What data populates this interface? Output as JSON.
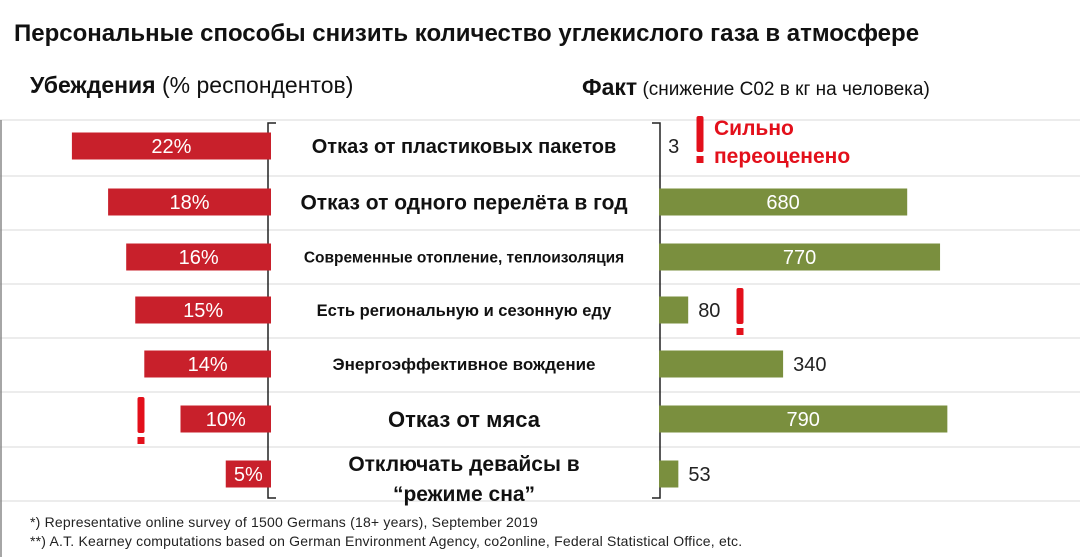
{
  "title": "Персональные способы снизить количество углекислого газа в атмосфере",
  "left_header": {
    "bold": "Убеждения",
    "rest": " (% респондентов)"
  },
  "right_header": {
    "bold": "Факт",
    "rest": " (снижение С02 в кг на человека)"
  },
  "chart_data": {
    "type": "bar",
    "categories": [
      "Отказ от пластиковых пакетов",
      "Отказ от одного перелёта в год",
      "Современные отопление, теплоизоляция",
      "Есть региональную и сезонную еду",
      "Энергоэффективное вождение",
      "Отказ от мяса",
      "Отключать девайсы в “режиме сна”"
    ],
    "series": [
      {
        "values": [
          22,
          18,
          16,
          15,
          14,
          10,
          5
        ],
        "labels": [
          "22%",
          "18%",
          "16%",
          "15%",
          "14%",
          "10%",
          "5%"
        ],
        "color": "#c8202b"
      },
      {
        "values": [
          3,
          680,
          770,
          80,
          340,
          790,
          53
        ],
        "labels": [
          "3",
          "680",
          "770",
          "80",
          "340",
          "790",
          "53"
        ],
        "color": "#7a8f3e"
      }
    ],
    "annotations": [
      {
        "text": "Сильно переоценено",
        "color": "#e3101b"
      }
    ]
  },
  "footnotes": [
    "*) Representative  online  survey of 1500 Germans  (18+ years), September  2019",
    "**) A.T.  Kearney  computations  based on German  Environment  Agency, co2online,  Federal Statistical Office,  etc."
  ]
}
